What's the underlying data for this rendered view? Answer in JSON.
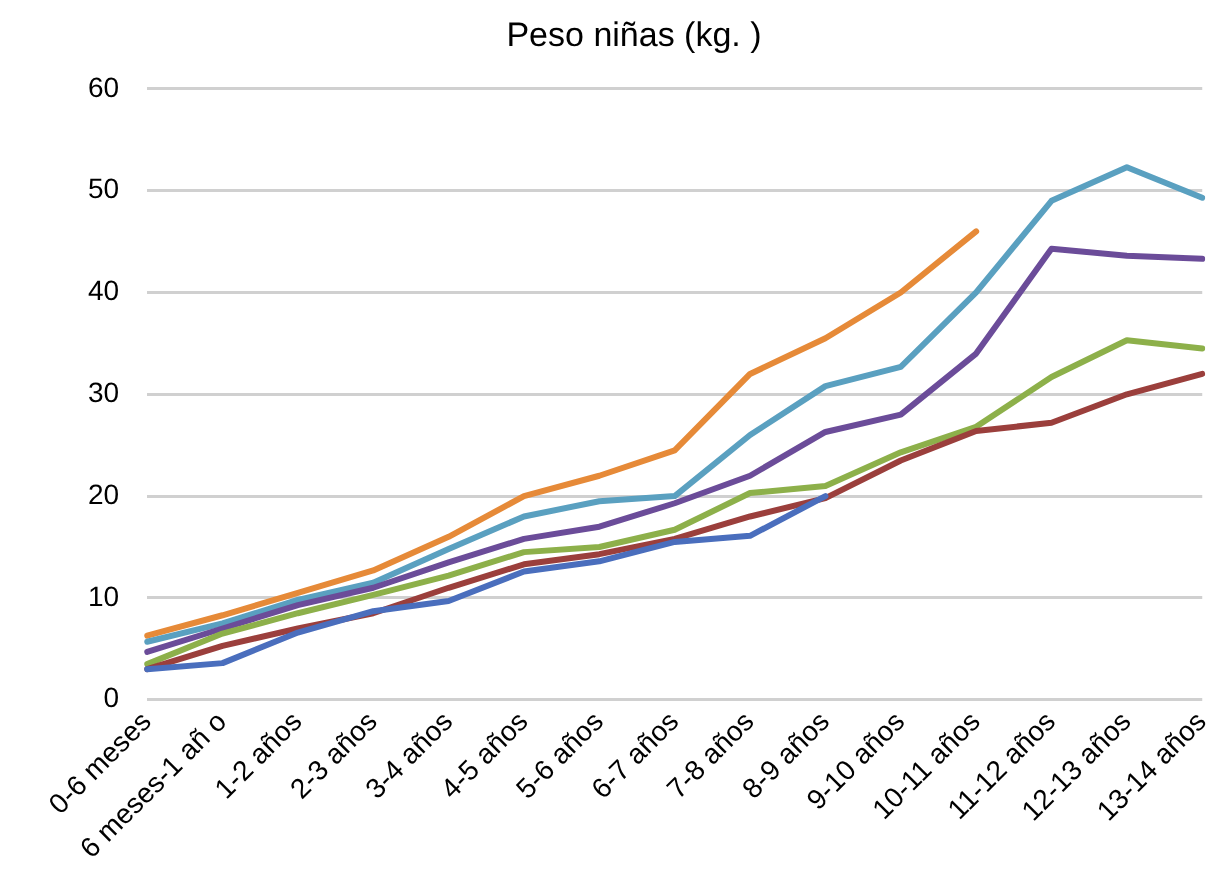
{
  "chart_data": {
    "type": "line",
    "title": "Peso niñas (kg. )",
    "categories": [
      "0-6 meses",
      "6 meses-1 añ o",
      "1-2 años",
      "2-3 años",
      "3-4 años",
      "4-5 años",
      "5-6 años",
      "6-7 años",
      "7-8 años",
      "8-9 años",
      "9-10 años",
      "10-11 años",
      "11-12 años",
      "12-13 años",
      "13-14 años"
    ],
    "series": [
      {
        "color": "#4a6ebd",
        "values": [
          3.0,
          3.6,
          6.6,
          8.7,
          9.7,
          12.6,
          13.6,
          15.5,
          16.1,
          20,
          null,
          null,
          null,
          null,
          null
        ]
      },
      {
        "color": "#9b3f3c",
        "values": [
          3.0,
          5.3,
          7.0,
          8.5,
          11.0,
          13.3,
          14.3,
          15.8,
          18.0,
          19.8,
          23.5,
          26.4,
          27.2,
          30.0,
          32.0
        ]
      },
      {
        "color": "#8db04a",
        "values": [
          3.5,
          6.5,
          8.5,
          10.3,
          12.2,
          14.5,
          15.0,
          16.7,
          20.3,
          21.0,
          24.3,
          26.8,
          31.7,
          35.3,
          34.5
        ]
      },
      {
        "color": "#6b4c99",
        "values": [
          4.7,
          7.0,
          9.3,
          11.0,
          13.5,
          15.8,
          17.0,
          19.3,
          22.0,
          26.3,
          28.0,
          34.0,
          44.3,
          43.6,
          43.3
        ]
      },
      {
        "color": "#5aa0c0",
        "values": [
          5.7,
          7.5,
          9.8,
          11.5,
          14.8,
          18.0,
          19.5,
          20.0,
          26.0,
          30.8,
          32.7,
          40.0,
          49.0,
          52.3,
          49.3
        ]
      },
      {
        "color": "#e68a38",
        "values": [
          6.3,
          8.3,
          10.5,
          12.7,
          16.0,
          20.0,
          22.0,
          24.5,
          32.0,
          35.5,
          40.0,
          46.0,
          null,
          null,
          null
        ]
      }
    ],
    "ylim": [
      0,
      60
    ],
    "yticks": [
      0,
      10,
      20,
      30,
      40,
      50,
      60
    ],
    "grid": "y",
    "legend": false,
    "marker": "none",
    "line_style": "solid"
  }
}
